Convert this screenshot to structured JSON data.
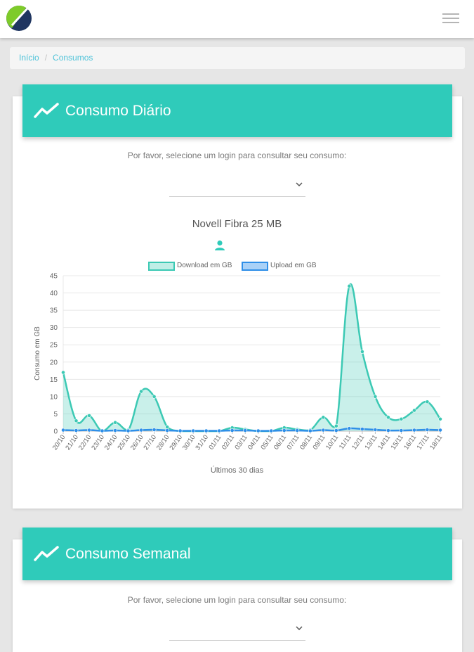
{
  "breadcrumb": {
    "items": [
      "Início",
      "Consumos"
    ]
  },
  "daily": {
    "title": "Consumo Diário",
    "prompt": "Por favor, selecione um login para consultar seu consumo:",
    "select_value": "",
    "plan": "Novell Fibra 25 MB"
  },
  "weekly": {
    "title": "Consumo Semanal",
    "prompt": "Por favor, selecione um login para consultar seu consumo:",
    "select_value": ""
  },
  "colors": {
    "accent": "#2fcbba",
    "download": "#3cc9b4",
    "upload": "#2f8fe8",
    "link": "#4fc3d9"
  },
  "icons": [
    "logo",
    "menu-icon",
    "trend-icon",
    "chevron-down-icon",
    "user-icon"
  ],
  "chart_data": {
    "type": "line",
    "title": "",
    "xlabel": "Últimos 30 dias",
    "ylabel": "Consumo em GB",
    "ylim": [
      0,
      45
    ],
    "yticks": [
      0,
      5,
      10,
      15,
      20,
      25,
      30,
      35,
      40,
      45
    ],
    "grid": true,
    "legend_position": "top",
    "categories": [
      "20/10",
      "21/10",
      "22/10",
      "23/10",
      "24/10",
      "25/10",
      "26/10",
      "27/10",
      "28/10",
      "29/10",
      "30/10",
      "31/10",
      "01/11",
      "02/11",
      "03/11",
      "04/11",
      "05/11",
      "06/11",
      "07/11",
      "08/11",
      "09/11",
      "10/11",
      "11/11",
      "12/11",
      "13/11",
      "14/11",
      "15/11",
      "16/11",
      "17/11",
      "18/11"
    ],
    "series": [
      {
        "name": "Download em GB",
        "fill": true,
        "values": [
          17,
          3,
          4.5,
          0,
          2.5,
          0.3,
          11.5,
          10,
          1.2,
          0,
          0,
          0,
          0,
          1,
          0.5,
          0,
          0,
          1,
          0.5,
          0.3,
          4,
          1.5,
          42,
          23,
          10,
          4,
          3.5,
          6,
          8.5,
          3.5
        ]
      },
      {
        "name": "Upload em GB",
        "fill": false,
        "values": [
          0.3,
          0.2,
          0.3,
          0.1,
          0.2,
          0.1,
          0.3,
          0.4,
          0.2,
          0.1,
          0.1,
          0.1,
          0.1,
          0.2,
          0.2,
          0.1,
          0.1,
          0.2,
          0.2,
          0.1,
          0.3,
          0.2,
          0.8,
          0.6,
          0.4,
          0.2,
          0.2,
          0.3,
          0.4,
          0.3
        ]
      }
    ]
  }
}
